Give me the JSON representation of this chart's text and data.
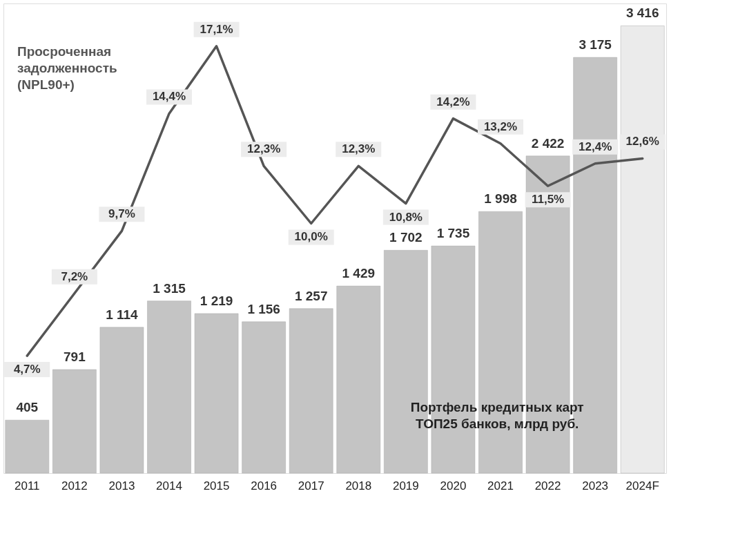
{
  "chart_data": {
    "type": "bar",
    "categories": [
      "2011",
      "2012",
      "2013",
      "2014",
      "2015",
      "2016",
      "2017",
      "2018",
      "2019",
      "2020",
      "2021",
      "2022",
      "2023",
      "2024F"
    ],
    "series": [
      {
        "name": "Портфель кредитных карт ТОП25 банков, млрд руб.",
        "values": [
          405,
          791,
          1114,
          1315,
          1219,
          1156,
          1257,
          1429,
          1702,
          1735,
          1998,
          2422,
          3175,
          3416
        ],
        "colors": [
          "#c4c4c4",
          "#c4c4c4",
          "#c4c4c4",
          "#c4c4c4",
          "#c4c4c4",
          "#c4c4c4",
          "#c4c4c4",
          "#c4c4c4",
          "#c4c4c4",
          "#c4c4c4",
          "#c4c4c4",
          "#c4c4c4",
          "#c4c4c4",
          "#ebebeb"
        ],
        "value_labels": [
          "405",
          "791",
          "1 114",
          "1 315",
          "1 219",
          "1 156",
          "1 257",
          "1 429",
          "1 702",
          "1 735",
          "1 998",
          "2 422",
          "3 175",
          "3 416"
        ]
      },
      {
        "name": "Просроченная задолженность (NPL90+)",
        "type": "line",
        "axis": "y2",
        "color": "#555555",
        "values": [
          4.7,
          7.2,
          9.7,
          14.4,
          17.1,
          12.3,
          10.0,
          12.3,
          10.8,
          14.2,
          13.2,
          11.5,
          12.4,
          12.6
        ],
        "value_labels": [
          "4,7%",
          "7,2%",
          "9,7%",
          "14,4%",
          "17,1%",
          "12,3%",
          "10,0%",
          "12,3%",
          "10,8%",
          "14,2%",
          "13,2%",
          "11,5%",
          "12,4%",
          "12,6%"
        ]
      }
    ],
    "tick_labels": "x",
    "grid": false,
    "line_style": "solid"
  }
}
